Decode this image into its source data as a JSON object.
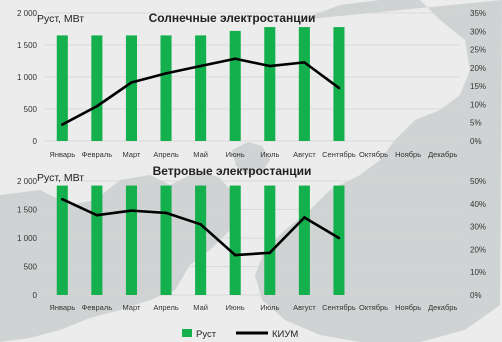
{
  "months": [
    "Январь",
    "Февраль",
    "Март",
    "Апрель",
    "Май",
    "Июнь",
    "Июль",
    "Август",
    "Сентябрь",
    "Октябрь",
    "Ноябрь",
    "Декабрь"
  ],
  "colors": {
    "bar": "#13b04d",
    "line": "#000000",
    "grid": "#d4d4d4",
    "tick": "#333333",
    "map_land": "#c7cbcc",
    "map_sea": "#ececec"
  },
  "legend": {
    "bar_label": "Руст",
    "line_label": "КИУМ"
  },
  "chart_data": [
    {
      "type": "bar",
      "title": "Солнечные электростанции",
      "ylabel": "Руст, МВт",
      "ylim": [
        0,
        2000
      ],
      "y_ticks": [
        "0",
        "500",
        "1 000",
        "1 500",
        "2 000"
      ],
      "y2lim": [
        0,
        35
      ],
      "y2_ticks": [
        "0%",
        "5%",
        "10%",
        "15%",
        "20%",
        "25%",
        "30%",
        "35%"
      ],
      "categories": [
        "Январь",
        "Февраль",
        "Март",
        "Апрель",
        "Май",
        "Июнь",
        "Июль",
        "Август",
        "Сентябрь",
        "Октябрь",
        "Ноябрь",
        "Декабрь"
      ],
      "series": [
        {
          "name": "Руст",
          "type": "bar",
          "axis": "left",
          "values": [
            1650,
            1650,
            1650,
            1650,
            1650,
            1720,
            1780,
            1780,
            1780,
            null,
            null,
            null
          ]
        },
        {
          "name": "КИУМ",
          "type": "line",
          "axis": "right",
          "values": [
            4.5,
            9.5,
            16,
            18.5,
            20.5,
            22.5,
            20.5,
            21.5,
            14.5,
            null,
            null,
            null
          ]
        }
      ],
      "grid": true,
      "legend": "bottom"
    },
    {
      "type": "bar",
      "title": "Ветровые электростанции",
      "ylabel": "Руст, МВт",
      "ylim": [
        0,
        2000
      ],
      "y_ticks": [
        "0",
        "500",
        "1 000",
        "1 500",
        "2 000"
      ],
      "y2lim": [
        0,
        50
      ],
      "y2_ticks": [
        "0%",
        "10%",
        "20%",
        "30%",
        "40%",
        "50%"
      ],
      "categories": [
        "Январь",
        "Февраль",
        "Март",
        "Апрель",
        "Май",
        "Июнь",
        "Июль",
        "Август",
        "Сентябрь",
        "Октябрь",
        "Ноябрь",
        "Декабрь"
      ],
      "series": [
        {
          "name": "Руст",
          "type": "bar",
          "axis": "left",
          "values": [
            1920,
            1920,
            1920,
            1920,
            1920,
            1920,
            1920,
            1920,
            1920,
            null,
            null,
            null
          ]
        },
        {
          "name": "КИУМ",
          "type": "line",
          "axis": "right",
          "values": [
            42,
            35,
            37,
            36,
            31,
            17.5,
            18.5,
            34,
            25,
            null,
            null,
            null
          ]
        }
      ],
      "grid": true,
      "legend": "bottom"
    }
  ]
}
